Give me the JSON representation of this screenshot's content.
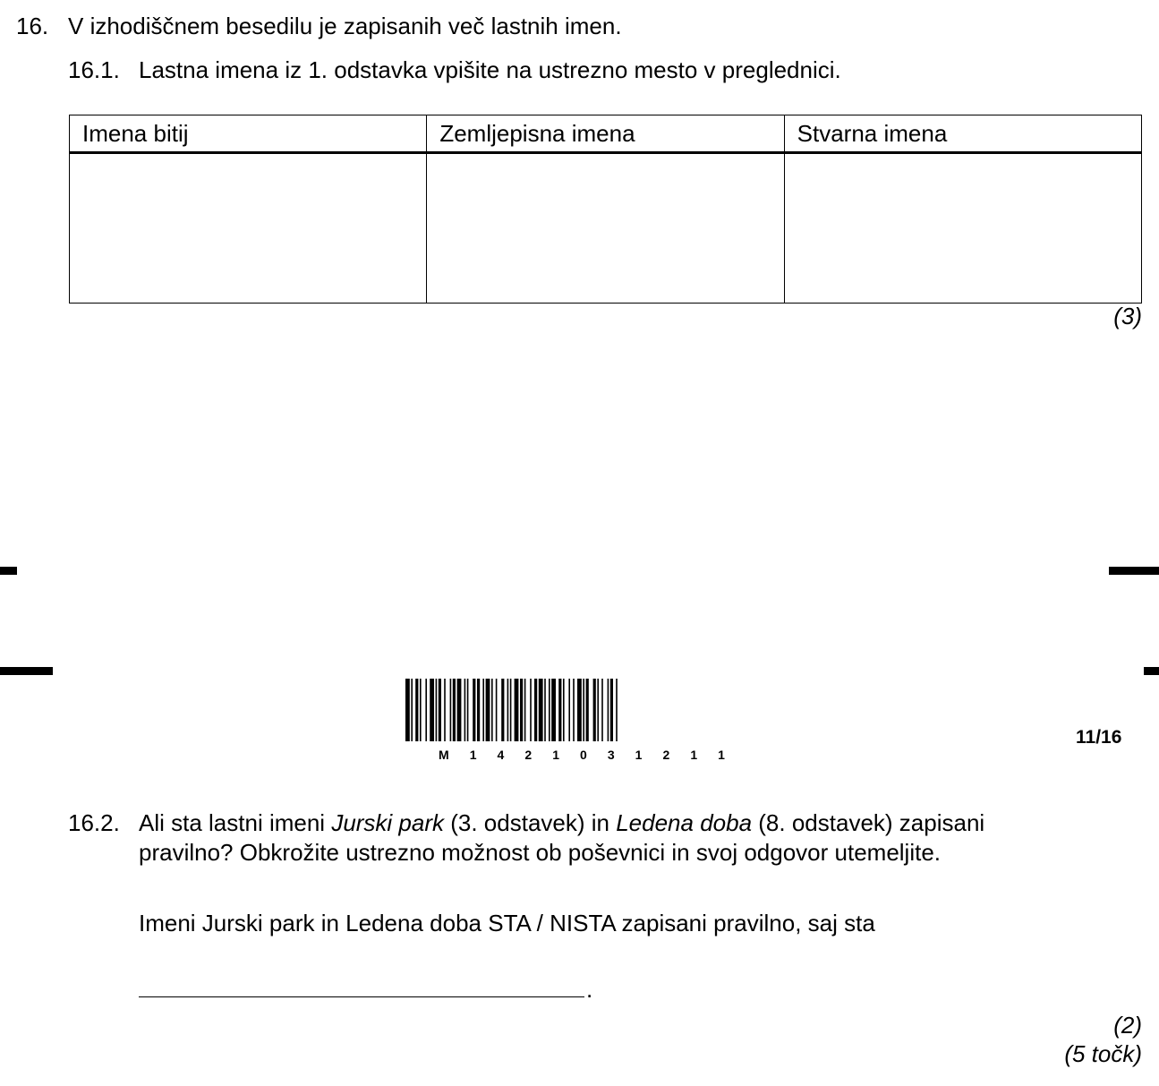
{
  "question": {
    "number": "16.",
    "text": "V izhodiščnem besedilu je zapisanih več lastnih imen."
  },
  "sub1": {
    "number": "16.1.",
    "text": "Lastna imena iz 1. odstavka vpišite na ustrezno mesto v preglednici.",
    "table_headers": [
      "Imena bitij",
      "Zemljepisna imena",
      "Stvarna imena"
    ],
    "points": "(3)"
  },
  "barcode": {
    "digits": [
      "M",
      "1",
      "4",
      "2",
      "1",
      "0",
      "3",
      "1",
      "2",
      "1",
      "1"
    ]
  },
  "page_number": "11/16",
  "sub2": {
    "number": "16.2.",
    "line1_a": "Ali sta lastni imeni ",
    "line1_b": "Jurski park",
    "line1_c": " (3. odstavek) in ",
    "line1_d": "Ledena doba",
    "line1_e": " (8. odstavek) zapisani",
    "line2": "pravilno? Obkrožite ustrezno možnost ob poševnici in svoj odgovor utemeljite.",
    "answer_text": "Imeni Jurski park in Ledena doba STA / NISTA zapisani pravilno, saj sta",
    "blank_end": ".",
    "points": "(2)",
    "total": "(5 točk)"
  }
}
